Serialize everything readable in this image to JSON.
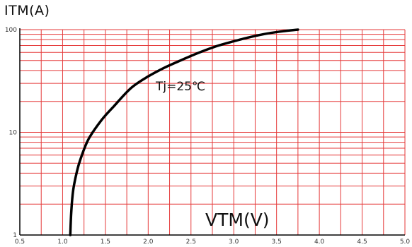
{
  "chart_data": {
    "type": "line",
    "ylabel": "ITM(A)",
    "xlabel": "VTM(V)",
    "annotation": "Tj=25℃",
    "xlim": [
      0.5,
      5.0
    ],
    "ylim": [
      1,
      100
    ],
    "yscale": "log",
    "grid": true,
    "x_ticks": [
      "0.5",
      "1.0",
      "1.5",
      "2.0",
      "2.5",
      "3.0",
      "3.5",
      "4.0",
      "4.5",
      "5.0"
    ],
    "y_ticks": [
      "1",
      "10",
      "100"
    ],
    "colors": {
      "grid": "#e53a3a",
      "curve": "#000000",
      "axis": "#000000"
    },
    "series": [
      {
        "x": [
          1.09,
          1.1,
          1.12,
          1.15,
          1.2,
          1.3,
          1.45,
          1.6,
          1.8,
          2.0,
          2.2,
          2.4,
          2.6,
          2.8,
          3.0,
          3.2,
          3.4,
          3.6,
          3.75
        ],
        "y": [
          1,
          1.6,
          2.6,
          3.6,
          5.2,
          8.5,
          13,
          18,
          27,
          35,
          43,
          51,
          60,
          69,
          77,
          85,
          92,
          97,
          100
        ]
      }
    ]
  }
}
